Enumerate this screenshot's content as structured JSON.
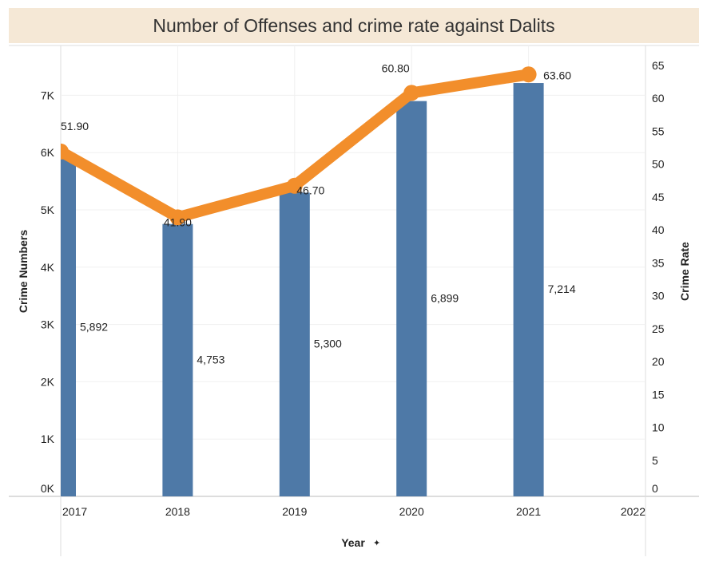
{
  "chart_data": {
    "type": "bar+line",
    "title": "Number of Offenses and crime rate against Dalits",
    "xlabel": "Year",
    "x_ticks": [
      "2017",
      "2018",
      "2019",
      "2020",
      "2021",
      "2022"
    ],
    "categories": [
      "2017",
      "2018",
      "2019",
      "2020",
      "2021"
    ],
    "ylabel_left": "Crime Numbers",
    "ylabel_right": "Crime Rate",
    "y_left_ticks": [
      "0K",
      "1K",
      "2K",
      "3K",
      "4K",
      "5K",
      "6K",
      "7K"
    ],
    "y_right_ticks": [
      "0",
      "5",
      "10",
      "15",
      "20",
      "25",
      "30",
      "35",
      "40",
      "45",
      "50",
      "55",
      "60",
      "65"
    ],
    "ylim_left": [
      0,
      7870
    ],
    "ylim_right": [
      0,
      68
    ],
    "grid": true,
    "series": [
      {
        "name": "Crime Numbers",
        "type": "bar",
        "axis": "left",
        "color": "#4e79a7",
        "values": [
          5892,
          4753,
          5300,
          6899,
          7214
        ],
        "labels": [
          "5,892",
          "4,753",
          "5,300",
          "6,899",
          "7,214"
        ]
      },
      {
        "name": "Crime Rate",
        "type": "line",
        "axis": "right",
        "color": "#f28e2b",
        "values": [
          51.9,
          41.9,
          46.7,
          60.8,
          63.6
        ],
        "labels": [
          "51.90",
          "41.90",
          "46.70",
          "60.80",
          "63.60"
        ]
      }
    ]
  }
}
